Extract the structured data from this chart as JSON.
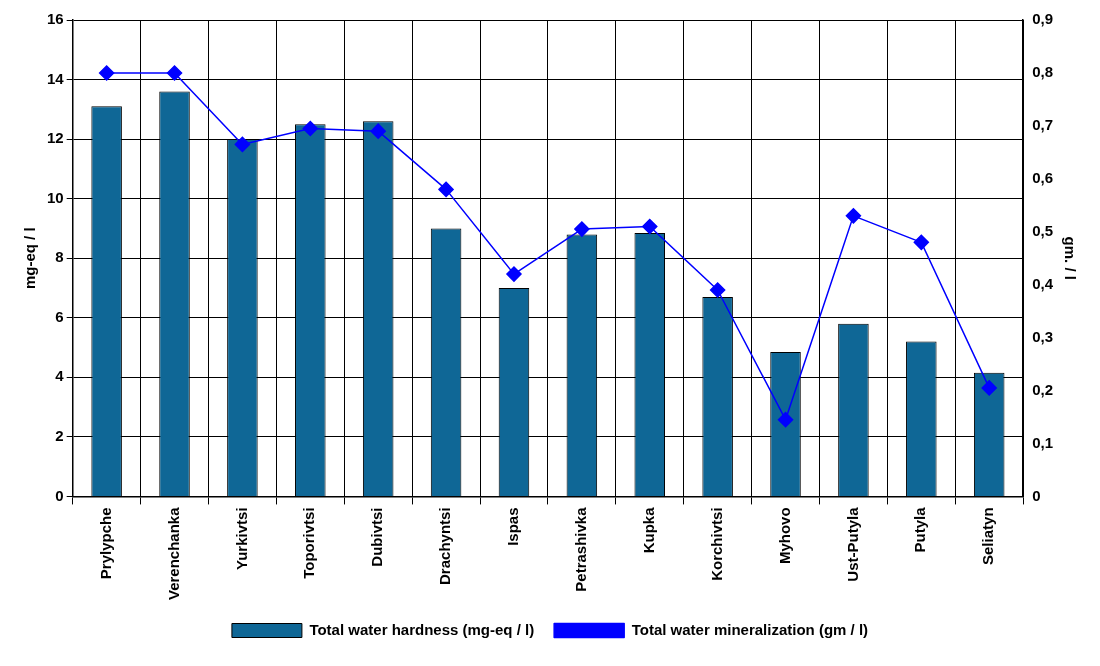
{
  "chart_data": {
    "type": "bar",
    "categories": [
      "Prylypche",
      "Verenchanka",
      "Yurkivtsi",
      "Toporivtsi",
      "Dubivtsi",
      "Drachyntsi",
      "Ispas",
      "Petrashivka",
      "Kupka",
      "Korchivtsi",
      "Myhovo",
      "Ust-Putyla",
      "Putyla",
      "Seliatyn"
    ],
    "series": [
      {
        "name": "Total water hardness (mg-eq / l)",
        "color": "#0f6796",
        "values": [
          13.1,
          13.6,
          12.0,
          12.5,
          12.6,
          9.0,
          7.0,
          8.8,
          8.85,
          6.7,
          4.85,
          5.8,
          5.2,
          4.15
        ]
      },
      {
        "name": "Total water mineralization (gm / l)",
        "type": "line",
        "axis": "y2",
        "color": "#0000ff",
        "values": [
          0.8,
          0.8,
          0.665,
          0.695,
          0.69,
          0.58,
          0.42,
          0.505,
          0.51,
          0.39,
          0.145,
          0.53,
          0.48,
          0.205
        ]
      }
    ],
    "ylabel": "mg-eq / l",
    "y2label": "gm. / l",
    "ylim": [
      0,
      16
    ],
    "yticks": [
      0,
      2,
      4,
      6,
      8,
      10,
      12,
      14,
      16
    ],
    "y2lim": [
      0,
      0.9
    ],
    "y2ticks": [
      {
        "value": 0,
        "label": "0"
      },
      {
        "value": 0.1,
        "label": "0,1"
      },
      {
        "value": 0.2,
        "label": "0,2"
      },
      {
        "value": 0.3,
        "label": "0,3"
      },
      {
        "value": 0.4,
        "label": "0,4"
      },
      {
        "value": 0.5,
        "label": "0,5"
      },
      {
        "value": 0.6,
        "label": "0,6"
      },
      {
        "value": 0.7,
        "label": "0,7"
      },
      {
        "value": 0.8,
        "label": "0,8"
      },
      {
        "value": 0.9,
        "label": "0,9"
      }
    ],
    "grid": true,
    "legend": "bottom",
    "marker": "diamond",
    "line_style": "solid"
  }
}
